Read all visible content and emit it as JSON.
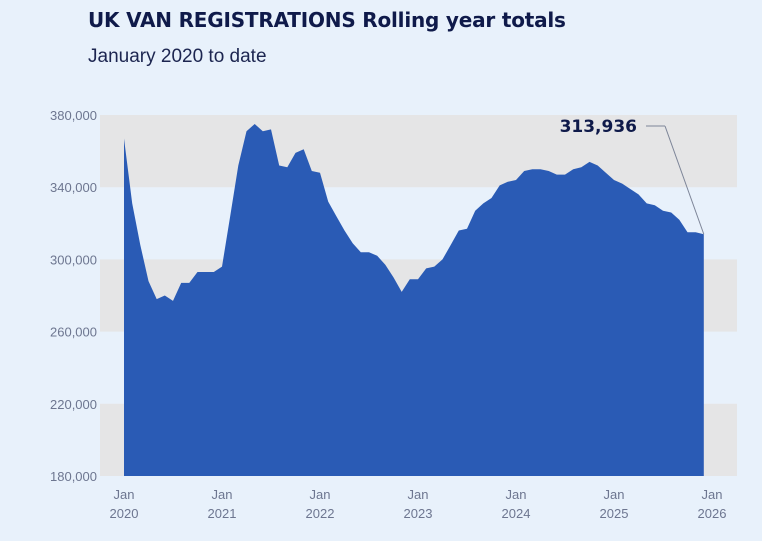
{
  "header": {
    "title": "UK VAN REGISTRATIONS Rolling year totals",
    "subtitle": "January 2020 to date"
  },
  "colors": {
    "area": "#2a5bb5",
    "band": "#e5e5e6",
    "background": "#e8f1fb",
    "text_dark": "#0f1a4a",
    "tick_text": "#6d7690"
  },
  "chart_data": {
    "type": "area",
    "title": "UK VAN REGISTRATIONS Rolling year totals",
    "subtitle": "January 2020 to date",
    "xlabel": "",
    "ylabel": "",
    "ylim": [
      180000,
      380000
    ],
    "y_ticks": [
      180000,
      220000,
      260000,
      300000,
      340000,
      380000
    ],
    "y_tick_labels": [
      "180,000",
      "220,000",
      "260,000",
      "300,000",
      "340,000",
      "380,000"
    ],
    "x_tick_labels": [
      {
        "month": "Jan",
        "year": "2020",
        "x": "2020-01"
      },
      {
        "month": "Jan",
        "year": "2021",
        "x": "2021-01"
      },
      {
        "month": "Jan",
        "year": "2022",
        "x": "2022-01"
      },
      {
        "month": "Jan",
        "year": "2023",
        "x": "2023-01"
      },
      {
        "month": "Jan",
        "year": "2024",
        "x": "2024-01"
      },
      {
        "month": "Jan",
        "year": "2025",
        "x": "2025-01"
      },
      {
        "month": "Jan",
        "year": "2026",
        "x": "2026-01"
      }
    ],
    "grid": "alternating horizontal bands",
    "annotation": {
      "label": "313,936",
      "x": "2025-12",
      "y": 313936
    },
    "series": [
      {
        "x": [
          "2020-01",
          "2020-02",
          "2020-03",
          "2020-04",
          "2020-05",
          "2020-06",
          "2020-07",
          "2020-08",
          "2020-09",
          "2020-10",
          "2020-11",
          "2020-12",
          "2021-01",
          "2021-02",
          "2021-03",
          "2021-04",
          "2021-05",
          "2021-06",
          "2021-07",
          "2021-08",
          "2021-09",
          "2021-10",
          "2021-11",
          "2021-12",
          "2022-01",
          "2022-02",
          "2022-03",
          "2022-04",
          "2022-05",
          "2022-06",
          "2022-07",
          "2022-08",
          "2022-09",
          "2022-10",
          "2022-11",
          "2022-12",
          "2023-01",
          "2023-02",
          "2023-03",
          "2023-04",
          "2023-05",
          "2023-06",
          "2023-07",
          "2023-08",
          "2023-09",
          "2023-10",
          "2023-11",
          "2023-12",
          "2024-01",
          "2024-02",
          "2024-03",
          "2024-04",
          "2024-05",
          "2024-06",
          "2024-07",
          "2024-08",
          "2024-09",
          "2024-10",
          "2024-11",
          "2024-12",
          "2025-01",
          "2025-02",
          "2025-03",
          "2025-04",
          "2025-05",
          "2025-06",
          "2025-07",
          "2025-08",
          "2025-09",
          "2025-10",
          "2025-11",
          "2025-12"
        ],
        "values": [
          367000,
          331000,
          308000,
          288000,
          278000,
          280000,
          277000,
          287000,
          287000,
          293000,
          293000,
          293000,
          296000,
          324000,
          352000,
          371000,
          375000,
          371000,
          372000,
          352000,
          351000,
          359000,
          361000,
          349000,
          348000,
          332000,
          324000,
          316000,
          309000,
          304000,
          304000,
          302000,
          297000,
          290000,
          282000,
          289000,
          289000,
          295000,
          296000,
          300000,
          308000,
          316000,
          317000,
          327000,
          331000,
          334000,
          341000,
          343000,
          344000,
          349000,
          350000,
          350000,
          349000,
          347000,
          347000,
          350000,
          351000,
          354000,
          352000,
          348000,
          344000,
          342000,
          339000,
          336000,
          331000,
          330000,
          327000,
          326000,
          322000,
          315000,
          315000,
          313936
        ]
      }
    ]
  }
}
